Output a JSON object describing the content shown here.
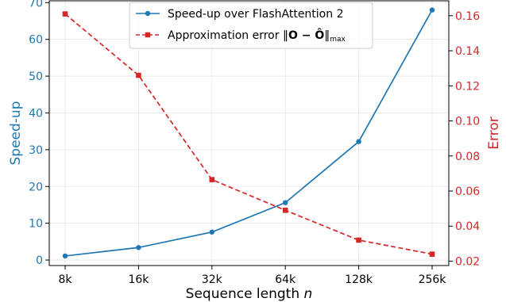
{
  "chart_data": {
    "type": "line",
    "categories": [
      "8k",
      "16k",
      "32k",
      "64k",
      "128k",
      "256k"
    ],
    "xlabel": "Sequence length",
    "xlabel_var": "n",
    "grid": true,
    "legend_placement": "top-center",
    "series": [
      {
        "name": "Speed-up over FlashAttention 2",
        "axis": "left",
        "color": "#1f77b4",
        "marker": "circle",
        "linestyle": "solid",
        "values": [
          1.1,
          3.4,
          7.6,
          15.6,
          32.2,
          68.0
        ]
      },
      {
        "name_prefix": "Approximation error",
        "axis": "right",
        "color": "#d62728",
        "marker": "square",
        "linestyle": "dashed",
        "values": [
          0.161,
          0.126,
          0.0665,
          0.049,
          0.032,
          0.024
        ]
      }
    ],
    "left_axis": {
      "label": "Speed-up",
      "color": "#1f77b4",
      "ylim": [
        -1.5,
        70.5
      ],
      "ticks": [
        0,
        10,
        20,
        30,
        40,
        50,
        60,
        70
      ],
      "tick_labels": [
        "0",
        "10",
        "20",
        "30",
        "40",
        "50",
        "60",
        "70"
      ]
    },
    "right_axis": {
      "label": "Error",
      "color": "#d62728",
      "ylim": [
        0.0175,
        0.1685
      ],
      "ticks": [
        0.02,
        0.04,
        0.06,
        0.08,
        0.1,
        0.12,
        0.14,
        0.16
      ],
      "tick_labels": [
        "0.02",
        "0.04",
        "0.06",
        "0.08",
        "0.10",
        "0.12",
        "0.14",
        "0.16"
      ]
    }
  }
}
